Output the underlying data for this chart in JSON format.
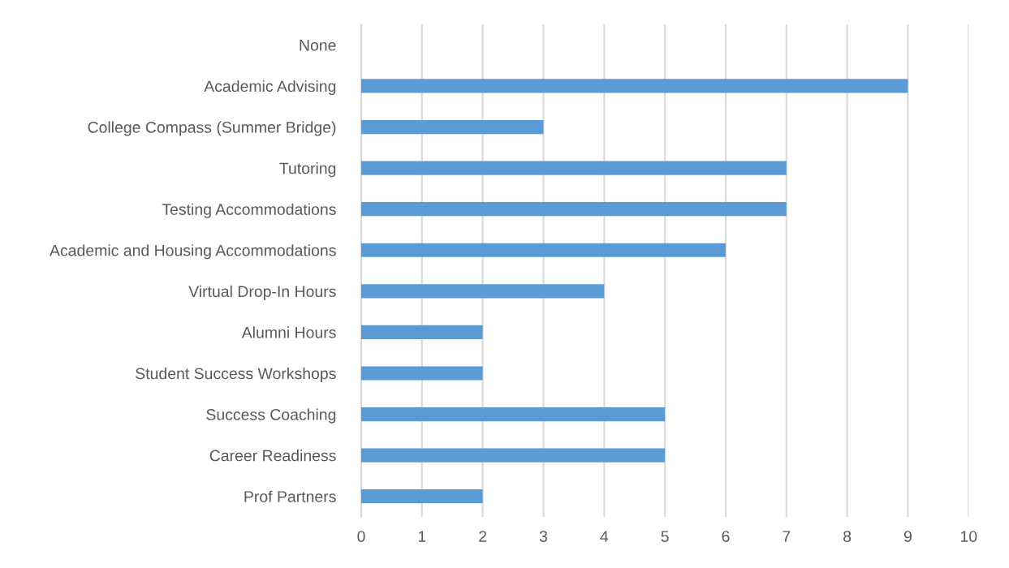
{
  "chart_data": {
    "type": "bar",
    "orientation": "horizontal",
    "categories": [
      "None",
      "Academic Advising",
      "College Compass (Summer Bridge)",
      "Tutoring",
      "Testing Accommodations",
      "Academic and Housing Accommodations",
      "Virtual Drop-In Hours",
      "Alumni Hours",
      "Student Success Workshops",
      "Success Coaching",
      "Career Readiness",
      "Prof Partners"
    ],
    "values": [
      0,
      9,
      3,
      7,
      7,
      6,
      4,
      2,
      2,
      5,
      5,
      2
    ],
    "color": "#5b9bd5",
    "xlim": [
      0,
      10
    ],
    "xticks": [
      0,
      1,
      2,
      3,
      4,
      5,
      6,
      7,
      8,
      9,
      10
    ],
    "grid": "x"
  }
}
